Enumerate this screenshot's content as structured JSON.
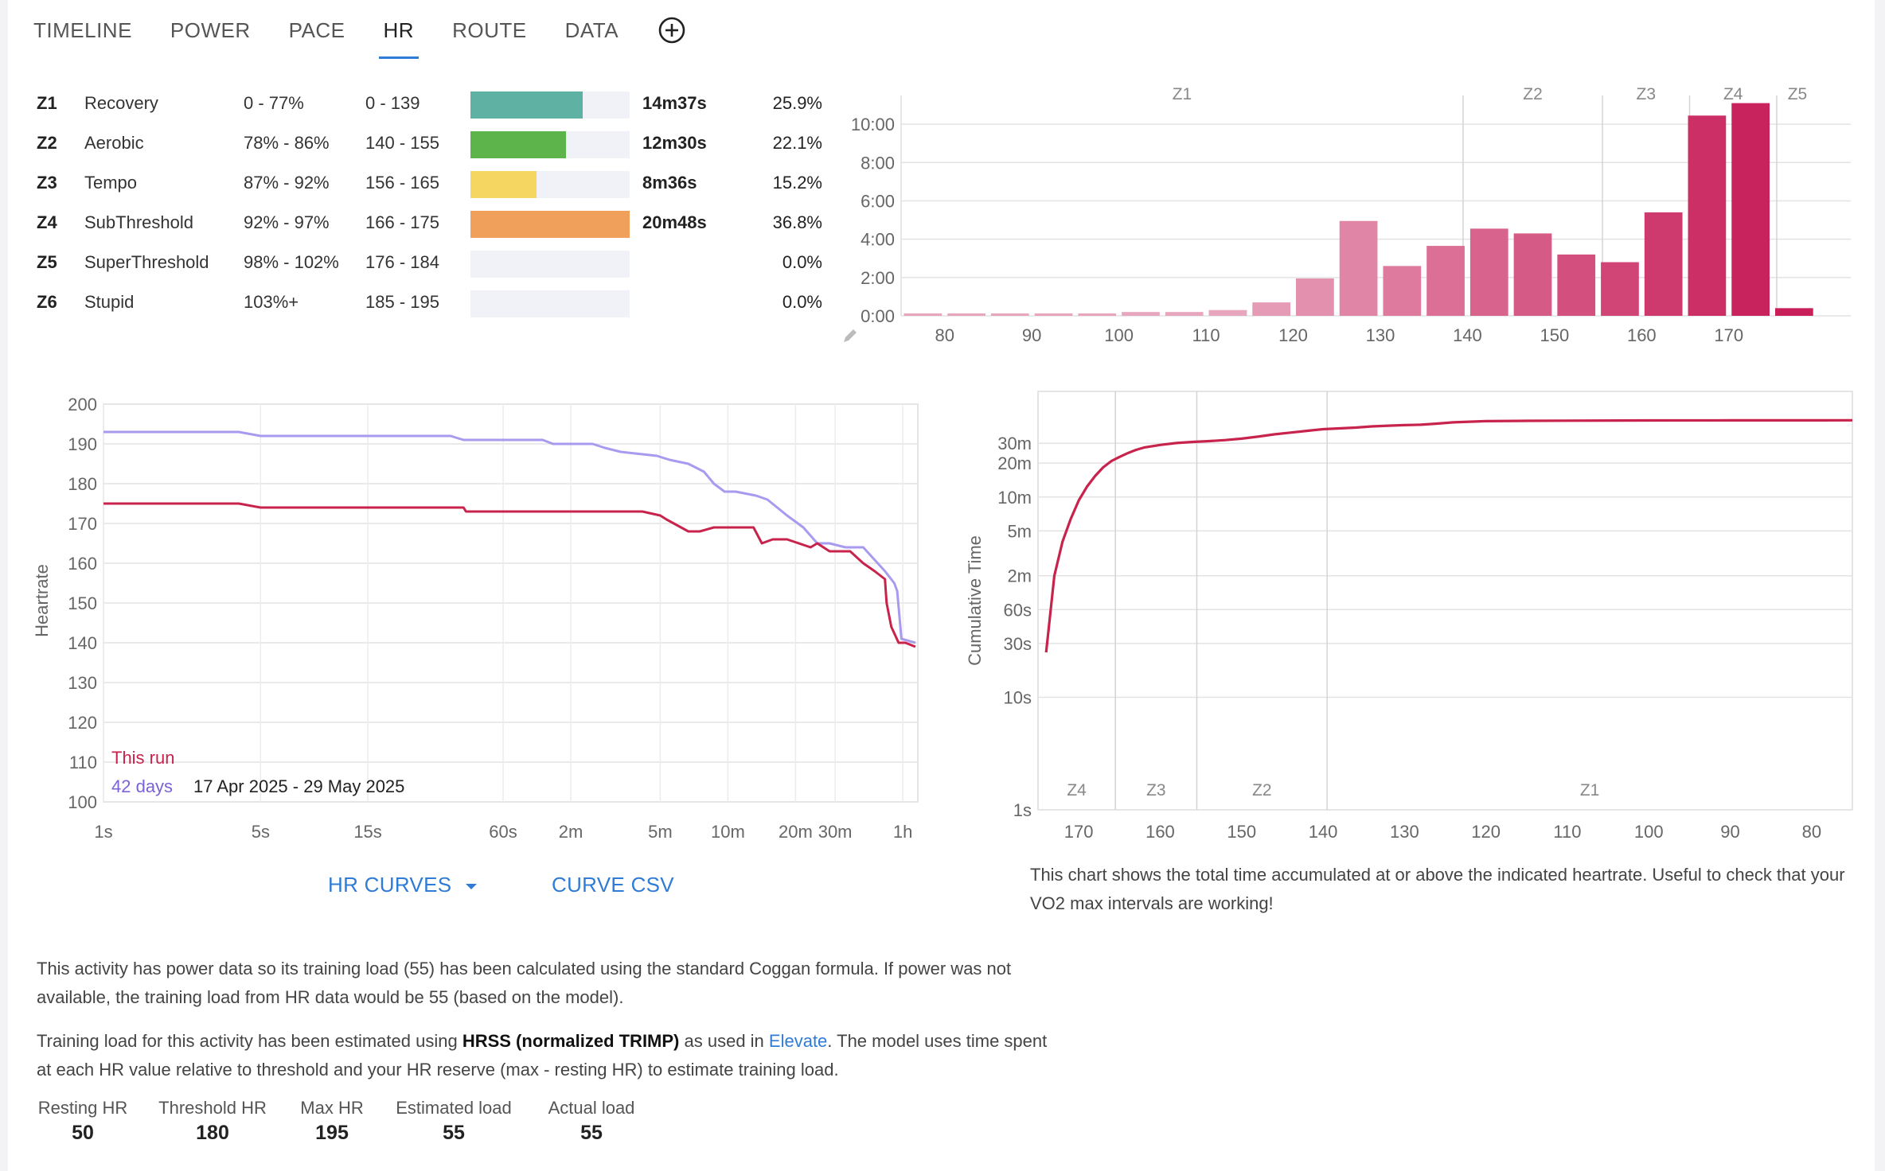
{
  "tabs": [
    {
      "label": "TIMELINE"
    },
    {
      "label": "POWER"
    },
    {
      "label": "PACE"
    },
    {
      "label": "HR",
      "active": true
    },
    {
      "label": "ROUTE"
    },
    {
      "label": "DATA"
    }
  ],
  "add_tab_icon": "plus-circle-icon",
  "zones": [
    {
      "id": "Z1",
      "name": "Recovery",
      "pct": "0 - 77%",
      "hr": "0 - 139",
      "time": "14m37s",
      "share": "25.9%",
      "share_value": 25.9,
      "color": "#5eb1a3"
    },
    {
      "id": "Z2",
      "name": "Aerobic",
      "pct": "78% - 86%",
      "hr": "140 - 155",
      "time": "12m30s",
      "share": "22.1%",
      "share_value": 22.1,
      "color": "#5cb44a"
    },
    {
      "id": "Z3",
      "name": "Tempo",
      "pct": "87% - 92%",
      "hr": "156 - 165",
      "time": "8m36s",
      "share": "15.2%",
      "share_value": 15.2,
      "color": "#f4d660"
    },
    {
      "id": "Z4",
      "name": "SubThreshold",
      "pct": "92% - 97%",
      "hr": "166 - 175",
      "time": "20m48s",
      "share": "36.8%",
      "share_value": 36.8,
      "color": "#f0a05a"
    },
    {
      "id": "Z5",
      "name": "SuperThreshold",
      "pct": "98% - 102%",
      "hr": "176 - 184",
      "time": "",
      "share": "0.0%",
      "share_value": 0,
      "color": "#e07a9a"
    },
    {
      "id": "Z6",
      "name": "Stupid",
      "pct": "103%+",
      "hr": "185 - 195",
      "time": "",
      "share": "0.0%",
      "share_value": 0,
      "color": "#c03050"
    }
  ],
  "chart_data": [
    {
      "type": "bar",
      "title": "",
      "xlabel": "",
      "ylabel": "",
      "x_ticks": [
        "80",
        "90",
        "100",
        "110",
        "120",
        "130",
        "140",
        "150",
        "160",
        "170"
      ],
      "y_ticks": [
        "0:00",
        "2:00",
        "4:00",
        "6:00",
        "8:00",
        "10:00"
      ],
      "zone_labels": [
        "Z1",
        "Z2",
        "Z3",
        "Z4",
        "Z5"
      ],
      "zone_boundaries_hr": [
        139.5,
        155.5,
        165.5,
        175.5
      ],
      "xlim": [
        75,
        184
      ],
      "ylim": [
        0,
        11.5
      ],
      "y_unit": "minutes",
      "categories": [
        77.5,
        82.5,
        87.5,
        92.5,
        97.5,
        102.5,
        107.5,
        112.5,
        117.5,
        122.5,
        127.5,
        132.5,
        137.5,
        142.5,
        147.5,
        152.5,
        157.5,
        162.5,
        167.5,
        172.5,
        177.5
      ],
      "values": [
        0.1,
        0.12,
        0.06,
        0.05,
        0.1,
        0.2,
        0.2,
        0.3,
        0.7,
        1.95,
        4.95,
        2.6,
        3.65,
        4.55,
        4.3,
        3.2,
        2.8,
        5.4,
        10.45,
        11.1,
        0.4
      ]
    },
    {
      "type": "line",
      "title": "",
      "xlabel": "",
      "ylabel": "Heartrate",
      "x_ticks": [
        "1s",
        "5s",
        "15s",
        "60s",
        "2m",
        "5m",
        "10m",
        "20m",
        "30m",
        "1h"
      ],
      "x_tick_seconds": [
        1,
        5,
        15,
        60,
        120,
        300,
        600,
        1200,
        1800,
        3600
      ],
      "y_ticks": [
        "100",
        "110",
        "120",
        "130",
        "140",
        "150",
        "160",
        "170",
        "180",
        "190",
        "200"
      ],
      "ylim": [
        100,
        200
      ],
      "x_scale": "log",
      "legend_position": "bottom-left",
      "legend_date_range": "17 Apr 2025 - 29 May 2025",
      "series": [
        {
          "name": "This run",
          "color": "#c8234c",
          "x": [
            1,
            4,
            5,
            40,
            41,
            250,
            300,
            320,
            400,
            450,
            520,
            600,
            780,
            850,
            950,
            1100,
            1400,
            1500,
            1700,
            2100,
            2400,
            2700,
            3000,
            3050,
            3200,
            3450,
            3700,
            4100
          ],
          "y": [
            175,
            175,
            174,
            174,
            173,
            173,
            172,
            171,
            168,
            168,
            169,
            169,
            169,
            165,
            166,
            166,
            164,
            165,
            163,
            163,
            160,
            158,
            156,
            150,
            144,
            140,
            140,
            139
          ]
        },
        {
          "name": "42 days",
          "color": "#a99af0",
          "x": [
            1,
            4,
            5,
            35,
            40,
            90,
            100,
            150,
            170,
            200,
            290,
            330,
            400,
            470,
            520,
            580,
            650,
            800,
            900,
            1100,
            1300,
            1500,
            1700,
            2000,
            2400,
            3000,
            3300,
            3400,
            3550,
            4100
          ],
          "y": [
            193,
            193,
            192,
            192,
            191,
            191,
            190,
            190,
            189,
            188,
            187,
            186,
            185,
            183,
            180,
            178,
            178,
            177,
            176,
            172,
            169,
            165,
            165,
            164,
            164,
            158,
            155,
            153,
            141,
            140
          ]
        }
      ]
    },
    {
      "type": "line",
      "title": "",
      "xlabel": "",
      "ylabel": "Cumulative Time",
      "x_ticks": [
        "170",
        "160",
        "150",
        "140",
        "130",
        "120",
        "110",
        "100",
        "90",
        "80"
      ],
      "xlim": [
        175,
        75
      ],
      "y_ticks": [
        "1s",
        "10s",
        "30s",
        "60s",
        "2m",
        "5m",
        "10m",
        "20m",
        "30m"
      ],
      "y_tick_seconds": [
        1,
        10,
        30,
        60,
        120,
        300,
        600,
        1200,
        1800
      ],
      "y_scale": "log",
      "zone_labels": [
        "Z4",
        "Z3",
        "Z2",
        "Z1"
      ],
      "zone_boundaries_hr": [
        165.5,
        155.5,
        139.5
      ],
      "series": [
        {
          "name": "",
          "color": "#c8234c",
          "x": [
            174,
            173,
            172,
            171,
            170,
            169,
            168,
            167,
            166,
            165,
            164,
            163,
            162,
            160,
            158,
            156,
            154,
            152,
            150,
            148,
            146,
            144,
            142,
            140,
            138,
            136,
            134,
            132,
            130,
            128,
            126,
            124,
            122,
            120,
            115,
            110,
            100,
            90,
            80,
            75
          ],
          "y": [
            25,
            120,
            240,
            380,
            560,
            740,
            920,
            1100,
            1250,
            1360,
            1470,
            1570,
            1650,
            1740,
            1810,
            1850,
            1880,
            1920,
            1980,
            2060,
            2160,
            2240,
            2320,
            2400,
            2440,
            2480,
            2540,
            2580,
            2610,
            2630,
            2690,
            2760,
            2800,
            2830,
            2850,
            2860,
            2870,
            2875,
            2878,
            2880
          ]
        }
      ]
    }
  ],
  "hr_curves_button": "HR CURVES",
  "curve_csv_button": "CURVE CSV",
  "cumulative_caption": "This chart shows the total time accumulated at or above the indicated heartrate. Useful to check that your VO2 max intervals are working!",
  "para1": "This activity has power data so its training load (55) has been calculated using the standard Coggan formula. If power was not available, the training load from HR data would be 55 (based on the model).",
  "para2": {
    "before": "Training load for this activity has been estimated using ",
    "bold": "HRSS (normalized TRIMP)",
    "middle": " as used in ",
    "link": "Elevate",
    "after": ". The model uses time spent at each HR value relative to threshold and your HR reserve (max - resting HR) to estimate training load."
  },
  "stats": [
    {
      "label": "Resting HR",
      "value": "50"
    },
    {
      "label": "Threshold HR",
      "value": "180"
    },
    {
      "label": "Max HR",
      "value": "195"
    },
    {
      "label": "Estimated load",
      "value": "55"
    },
    {
      "label": "Actual load",
      "value": "55"
    }
  ]
}
